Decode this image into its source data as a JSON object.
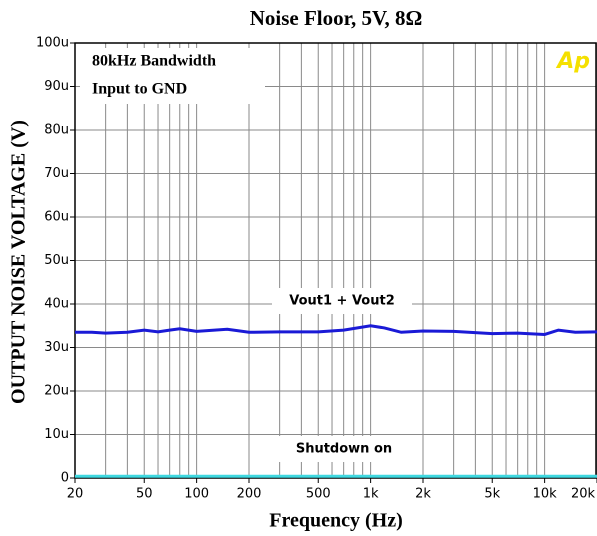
{
  "chart_data": {
    "type": "line",
    "title": "Noise Floor, 5V, 8Ω",
    "x_label": "Frequency (Hz)",
    "y_label": "OUTPUT NOISE VOLTAGE (V)",
    "annotations": [
      "80kHz Bandwidth",
      "Input to GND",
      "Vout1 + Vout2",
      "Shutdown on"
    ],
    "logo": "Ap",
    "xscale": "log",
    "grid": true,
    "xlim": [
      20,
      20000
    ],
    "ylim": [
      0,
      0.0001
    ],
    "xticks": [
      20,
      50,
      100,
      200,
      500,
      {
        "value": 1000,
        "label": "1k"
      },
      {
        "value": 2000,
        "label": "2k"
      },
      {
        "value": 5000,
        "label": "5k"
      },
      {
        "value": 10000,
        "label": "10k"
      },
      {
        "value": 20000,
        "label": "20k"
      }
    ],
    "x_minor_ticks": [
      30,
      40,
      60,
      70,
      80,
      90,
      300,
      400,
      600,
      700,
      800,
      900,
      3000,
      4000,
      6000,
      7000,
      8000,
      9000
    ],
    "yticks": [
      0,
      {
        "value": 1e-05,
        "label": "10u"
      },
      {
        "value": 2e-05,
        "label": "20u"
      },
      {
        "value": 3e-05,
        "label": "30u"
      },
      {
        "value": 4e-05,
        "label": "40u"
      },
      {
        "value": 5e-05,
        "label": "50u"
      },
      {
        "value": 6e-05,
        "label": "60u"
      },
      {
        "value": 7e-05,
        "label": "70u"
      },
      {
        "value": 8e-05,
        "label": "80u"
      },
      {
        "value": 9e-05,
        "label": "90u"
      },
      {
        "value": 0.0001,
        "label": "100u"
      }
    ],
    "series": [
      {
        "name": "Vout1 + Vout2",
        "color": "#1a1ad6",
        "x": [
          20,
          25,
          30,
          40,
          50,
          60,
          70,
          80,
          100,
          150,
          200,
          300,
          500,
          700,
          1000,
          1200,
          1500,
          2000,
          3000,
          5000,
          7000,
          10000,
          12000,
          15000,
          20000
        ],
        "values": [
          3.35e-05,
          3.35e-05,
          3.33e-05,
          3.35e-05,
          3.4e-05,
          3.36e-05,
          3.4e-05,
          3.43e-05,
          3.37e-05,
          3.42e-05,
          3.35e-05,
          3.36e-05,
          3.36e-05,
          3.4e-05,
          3.5e-05,
          3.45e-05,
          3.35e-05,
          3.38e-05,
          3.37e-05,
          3.32e-05,
          3.33e-05,
          3.3e-05,
          3.4e-05,
          3.35e-05,
          3.36e-05
        ]
      },
      {
        "name": "Shutdown on",
        "color": "#3fd8e0",
        "x": [
          20,
          20000
        ],
        "values": [
          4e-07,
          4e-07
        ]
      }
    ]
  }
}
